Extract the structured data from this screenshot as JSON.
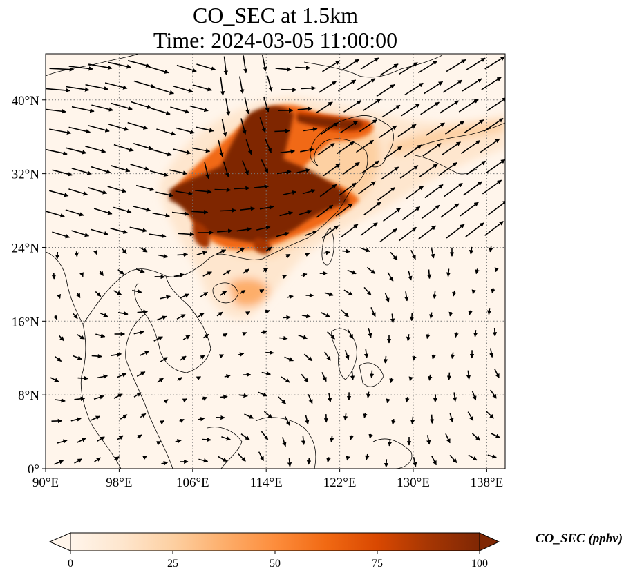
{
  "title": {
    "line1": "CO_SEC at 1.5km",
    "line2": "Time: 2024-03-05 11:00:00"
  },
  "map": {
    "lon_range": [
      90,
      140
    ],
    "lat_range": [
      0,
      45
    ],
    "lon_ticks": [
      "90°E",
      "98°E",
      "106°E",
      "114°E",
      "122°E",
      "130°E",
      "138°E"
    ],
    "lat_ticks": [
      "0°",
      "8°N",
      "16°N",
      "24°N",
      "32°N",
      "40°N"
    ],
    "gridlines": "dotted"
  },
  "colorbar": {
    "label": "CO_SEC (ppbv)",
    "ticks": [
      "0",
      "25",
      "50",
      "75",
      "100"
    ],
    "range": [
      0,
      100
    ],
    "extend": "both",
    "colors": [
      "#fff5eb",
      "#fee6ce",
      "#fdd0a2",
      "#fdae6b",
      "#fd8d3c",
      "#f16913",
      "#d94801",
      "#a63603",
      "#7f2704"
    ]
  }
}
